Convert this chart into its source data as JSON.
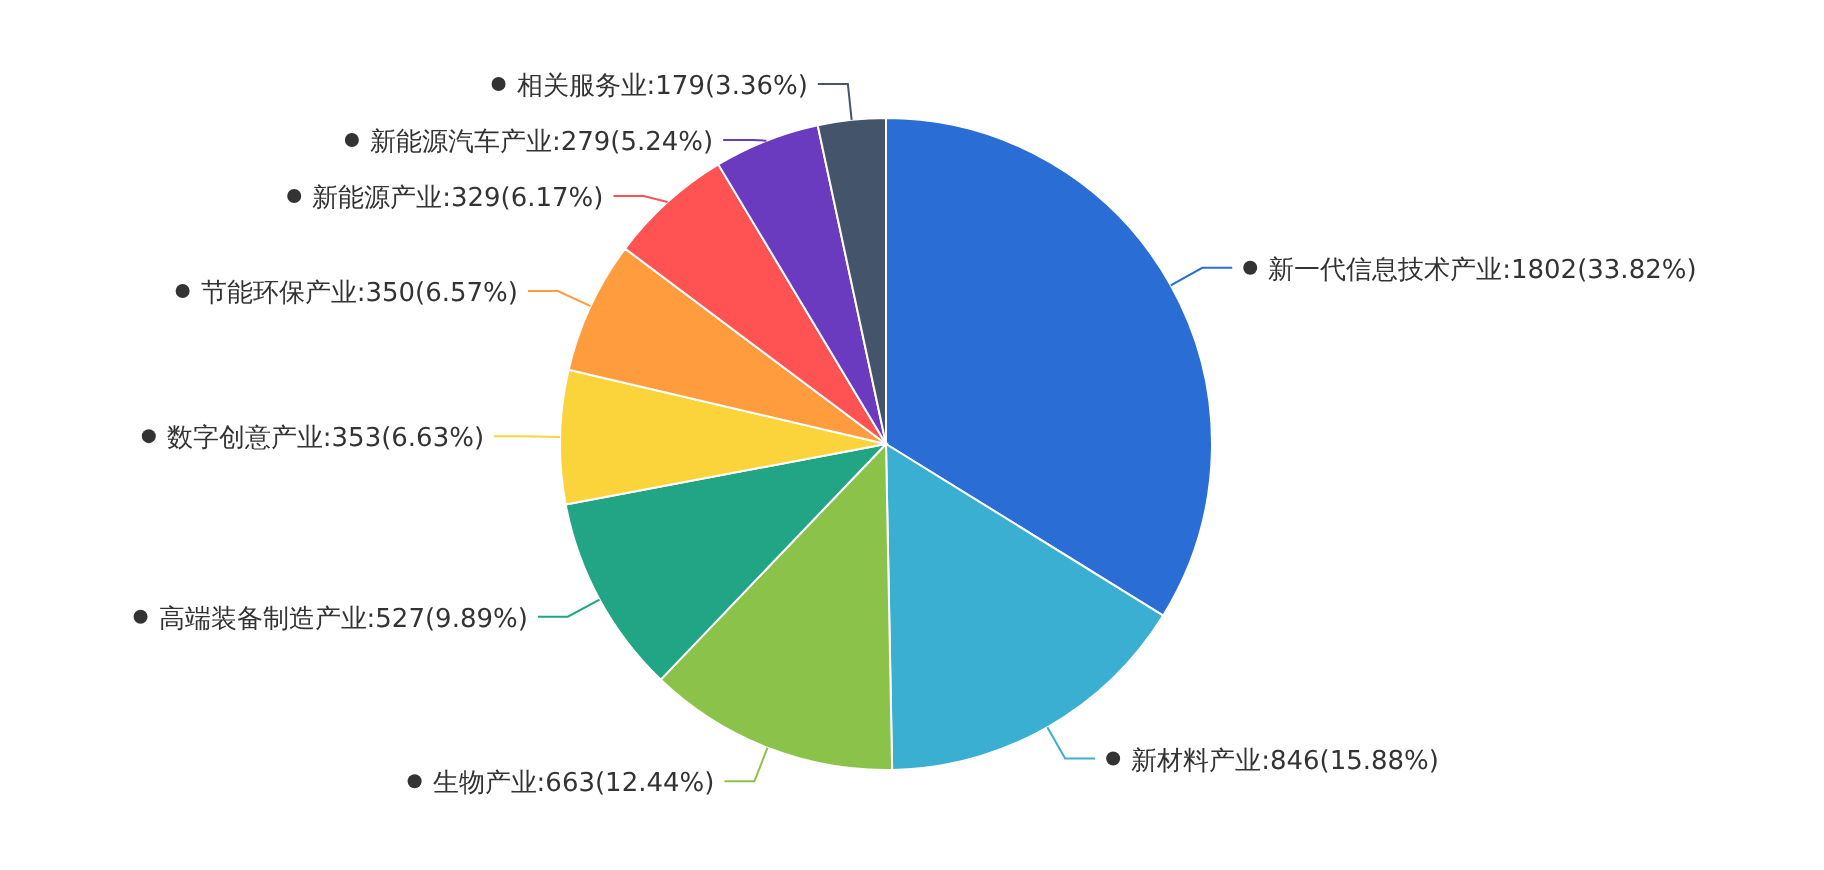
{
  "chart_data": {
    "type": "pie",
    "categories": [
      "新一代信息技术产业",
      "新材料产业",
      "生物产业",
      "高端装备制造产业",
      "数字创意产业",
      "节能环保产业",
      "新能源产业",
      "新能源汽车产业",
      "相关服务业"
    ],
    "values": [
      33.82,
      15.88,
      12.44,
      9.89,
      6.63,
      6.57,
      6.17,
      5.24,
      3.36
    ],
    "value_labels": [
      ":1802(33.82%)",
      ":846(15.88%)",
      ":663(12.44%)",
      ":527(9.89%)",
      ":353(6.63%)",
      ":350(6.57%)",
      ":329(6.17%)",
      ":279(5.24%)",
      ":179(3.36%)"
    ],
    "colors": [
      "#2a6dd5",
      "#3aafd1",
      "#8bc34a",
      "#21a584",
      "#fbd43b",
      "#ff9c3e",
      "#ff5252",
      "#6a3bbe",
      "#44546a"
    ]
  }
}
